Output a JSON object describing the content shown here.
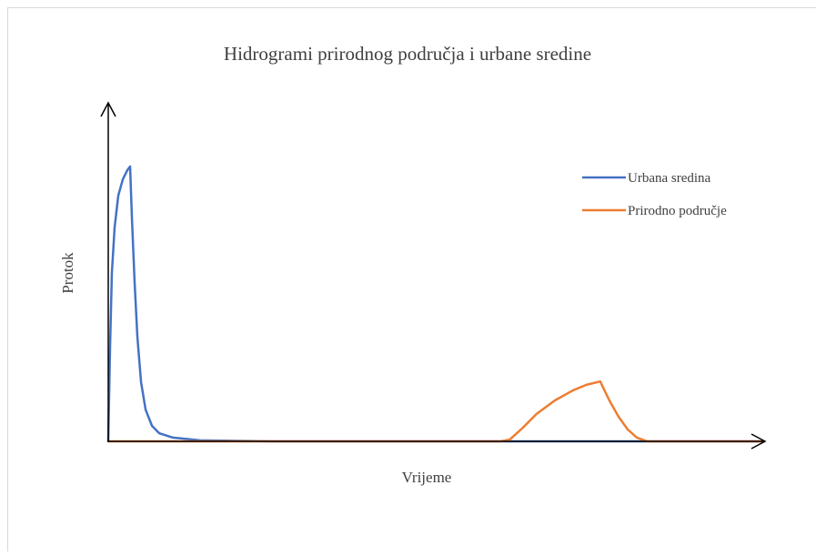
{
  "chart_data": {
    "type": "line",
    "title": "Hidrogrami prirodnog područja i urbane sredine",
    "x_label": "Vrijeme",
    "y_label": "Protok",
    "xlim": [
      0,
      100
    ],
    "ylim": [
      0,
      100
    ],
    "legend": "right",
    "series": [
      {
        "name": "Urbana sredina",
        "color": "#4472c4",
        "x": [
          0,
          0.28,
          0.55,
          0.97,
          1.53,
          2.22,
          2.91,
          3.33,
          3.61,
          4.02,
          4.44,
          5.0,
          5.69,
          6.66,
          7.77,
          9.85,
          14.0,
          25.1,
          100
        ],
        "values": [
          0,
          28.2,
          49.7,
          63.2,
          72.6,
          77.4,
          80.1,
          81.2,
          65.9,
          47.0,
          30.9,
          17.5,
          9.4,
          4.6,
          2.4,
          1.1,
          0.3,
          0,
          0
        ]
      },
      {
        "name": "Prirodno područje",
        "color": "#ed7d31",
        "x": [
          0,
          59.8,
          61.2,
          63.2,
          65.3,
          68.1,
          70.9,
          72.9,
          75.0,
          76.4,
          77.8,
          79.2,
          80.6,
          82.2,
          100
        ],
        "values": [
          0,
          0,
          0.5,
          4.0,
          8.1,
          12.1,
          15.1,
          16.7,
          17.7,
          12.1,
          7.3,
          3.5,
          1.1,
          0,
          0
        ]
      }
    ]
  }
}
